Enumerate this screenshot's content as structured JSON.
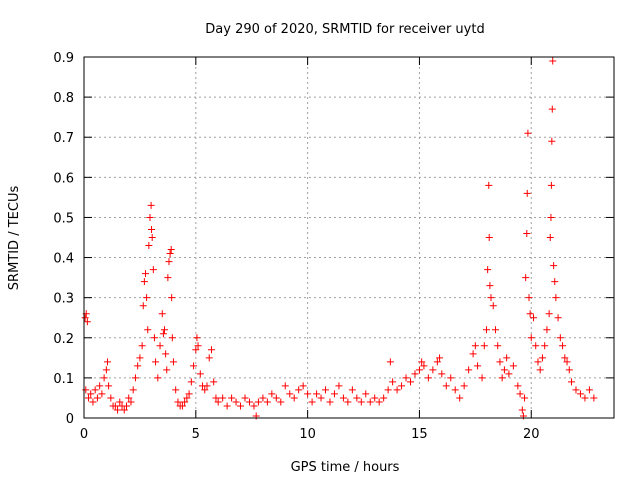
{
  "chart_data": {
    "type": "scatter",
    "title": "Day 290 of 2020, SRMTID for receiver uytd",
    "xlabel": "GPS time / hours",
    "ylabel": "SRMTID / TECUs",
    "xlim": [
      0,
      23.7
    ],
    "ylim": [
      0,
      0.9
    ],
    "xticks": [
      0,
      5,
      10,
      15,
      20
    ],
    "xtick_labels": [
      "0",
      "5",
      "10",
      "15",
      "20"
    ],
    "yticks": [
      0,
      0.1,
      0.2,
      0.3,
      0.4,
      0.5,
      0.6,
      0.7,
      0.8,
      0.9
    ],
    "ytick_labels": [
      "0",
      "0.1",
      "0.2",
      "0.3",
      "0.4",
      "0.5",
      "0.6",
      "0.7",
      "0.8",
      "0.9"
    ],
    "grid": true,
    "marker": "+",
    "color": "#ff0000",
    "series": [
      {
        "name": "SRMTID",
        "points": [
          [
            0.05,
            0.25
          ],
          [
            0.1,
            0.26
          ],
          [
            0.15,
            0.24
          ],
          [
            0.08,
            0.07
          ],
          [
            0.2,
            0.05
          ],
          [
            0.3,
            0.06
          ],
          [
            0.4,
            0.04
          ],
          [
            0.5,
            0.07
          ],
          [
            0.6,
            0.05
          ],
          [
            0.7,
            0.08
          ],
          [
            0.8,
            0.06
          ],
          [
            0.9,
            0.1
          ],
          [
            1.0,
            0.12
          ],
          [
            1.05,
            0.14
          ],
          [
            1.1,
            0.08
          ],
          [
            1.2,
            0.05
          ],
          [
            1.3,
            0.03
          ],
          [
            1.4,
            0.03
          ],
          [
            1.5,
            0.02
          ],
          [
            1.6,
            0.04
          ],
          [
            1.7,
            0.03
          ],
          [
            1.8,
            0.02
          ],
          [
            1.9,
            0.03
          ],
          [
            2.0,
            0.05
          ],
          [
            2.1,
            0.04
          ],
          [
            2.2,
            0.07
          ],
          [
            2.3,
            0.1
          ],
          [
            2.4,
            0.13
          ],
          [
            2.5,
            0.15
          ],
          [
            2.6,
            0.18
          ],
          [
            2.65,
            0.28
          ],
          [
            2.7,
            0.34
          ],
          [
            2.75,
            0.36
          ],
          [
            2.8,
            0.3
          ],
          [
            2.85,
            0.22
          ],
          [
            2.9,
            0.43
          ],
          [
            2.95,
            0.5
          ],
          [
            3.0,
            0.53
          ],
          [
            3.02,
            0.47
          ],
          [
            3.05,
            0.45
          ],
          [
            3.1,
            0.37
          ],
          [
            3.15,
            0.2
          ],
          [
            3.2,
            0.14
          ],
          [
            3.3,
            0.1
          ],
          [
            3.4,
            0.18
          ],
          [
            3.5,
            0.26
          ],
          [
            3.55,
            0.21
          ],
          [
            3.6,
            0.22
          ],
          [
            3.65,
            0.16
          ],
          [
            3.7,
            0.12
          ],
          [
            3.75,
            0.35
          ],
          [
            3.8,
            0.39
          ],
          [
            3.85,
            0.41
          ],
          [
            3.9,
            0.42
          ],
          [
            3.92,
            0.3
          ],
          [
            3.95,
            0.2
          ],
          [
            4.0,
            0.14
          ],
          [
            4.1,
            0.07
          ],
          [
            4.2,
            0.04
          ],
          [
            4.3,
            0.03
          ],
          [
            4.4,
            0.03
          ],
          [
            4.5,
            0.04
          ],
          [
            4.6,
            0.05
          ],
          [
            4.7,
            0.06
          ],
          [
            4.8,
            0.09
          ],
          [
            4.9,
            0.13
          ],
          [
            5.0,
            0.17
          ],
          [
            5.05,
            0.2
          ],
          [
            5.1,
            0.18
          ],
          [
            5.2,
            0.11
          ],
          [
            5.3,
            0.08
          ],
          [
            5.4,
            0.07
          ],
          [
            5.5,
            0.08
          ],
          [
            5.6,
            0.15
          ],
          [
            5.7,
            0.17
          ],
          [
            5.8,
            0.09
          ],
          [
            5.9,
            0.05
          ],
          [
            6.0,
            0.04
          ],
          [
            6.2,
            0.05
          ],
          [
            6.4,
            0.03
          ],
          [
            6.6,
            0.05
          ],
          [
            6.8,
            0.04
          ],
          [
            7.0,
            0.03
          ],
          [
            7.2,
            0.05
          ],
          [
            7.4,
            0.04
          ],
          [
            7.6,
            0.03
          ],
          [
            7.7,
            0.005
          ],
          [
            7.8,
            0.04
          ],
          [
            8.0,
            0.05
          ],
          [
            8.2,
            0.04
          ],
          [
            8.4,
            0.06
          ],
          [
            8.6,
            0.05
          ],
          [
            8.8,
            0.04
          ],
          [
            9.0,
            0.08
          ],
          [
            9.2,
            0.06
          ],
          [
            9.4,
            0.05
          ],
          [
            9.6,
            0.07
          ],
          [
            9.8,
            0.08
          ],
          [
            10.0,
            0.06
          ],
          [
            10.2,
            0.04
          ],
          [
            10.4,
            0.06
          ],
          [
            10.6,
            0.05
          ],
          [
            10.8,
            0.07
          ],
          [
            11.0,
            0.04
          ],
          [
            11.2,
            0.06
          ],
          [
            11.4,
            0.08
          ],
          [
            11.6,
            0.05
          ],
          [
            11.8,
            0.04
          ],
          [
            12.0,
            0.07
          ],
          [
            12.2,
            0.05
          ],
          [
            12.4,
            0.04
          ],
          [
            12.6,
            0.06
          ],
          [
            12.8,
            0.04
          ],
          [
            13.0,
            0.05
          ],
          [
            13.2,
            0.04
          ],
          [
            13.4,
            0.05
          ],
          [
            13.6,
            0.07
          ],
          [
            13.7,
            0.14
          ],
          [
            13.8,
            0.09
          ],
          [
            14.0,
            0.07
          ],
          [
            14.2,
            0.08
          ],
          [
            14.4,
            0.1
          ],
          [
            14.6,
            0.09
          ],
          [
            14.8,
            0.11
          ],
          [
            15.0,
            0.12
          ],
          [
            15.1,
            0.14
          ],
          [
            15.2,
            0.13
          ],
          [
            15.4,
            0.1
          ],
          [
            15.6,
            0.12
          ],
          [
            15.8,
            0.14
          ],
          [
            15.9,
            0.15
          ],
          [
            16.0,
            0.11
          ],
          [
            16.2,
            0.08
          ],
          [
            16.4,
            0.1
          ],
          [
            16.6,
            0.07
          ],
          [
            16.8,
            0.05
          ],
          [
            17.0,
            0.08
          ],
          [
            17.2,
            0.12
          ],
          [
            17.4,
            0.16
          ],
          [
            17.5,
            0.18
          ],
          [
            17.6,
            0.13
          ],
          [
            17.8,
            0.1
          ],
          [
            17.9,
            0.18
          ],
          [
            18.0,
            0.22
          ],
          [
            18.05,
            0.37
          ],
          [
            18.1,
            0.58
          ],
          [
            18.12,
            0.45
          ],
          [
            18.15,
            0.33
          ],
          [
            18.2,
            0.3
          ],
          [
            18.3,
            0.28
          ],
          [
            18.4,
            0.22
          ],
          [
            18.5,
            0.18
          ],
          [
            18.6,
            0.14
          ],
          [
            18.7,
            0.1
          ],
          [
            18.8,
            0.12
          ],
          [
            18.9,
            0.15
          ],
          [
            19.0,
            0.11
          ],
          [
            19.2,
            0.13
          ],
          [
            19.4,
            0.08
          ],
          [
            19.5,
            0.06
          ],
          [
            19.6,
            0.02
          ],
          [
            19.65,
            0.005
          ],
          [
            19.7,
            0.05
          ],
          [
            19.75,
            0.35
          ],
          [
            19.8,
            0.46
          ],
          [
            19.82,
            0.56
          ],
          [
            19.85,
            0.71
          ],
          [
            19.9,
            0.3
          ],
          [
            19.95,
            0.26
          ],
          [
            20.0,
            0.2
          ],
          [
            20.1,
            0.25
          ],
          [
            20.2,
            0.18
          ],
          [
            20.3,
            0.14
          ],
          [
            20.4,
            0.12
          ],
          [
            20.5,
            0.15
          ],
          [
            20.6,
            0.18
          ],
          [
            20.7,
            0.22
          ],
          [
            20.8,
            0.26
          ],
          [
            20.85,
            0.45
          ],
          [
            20.88,
            0.5
          ],
          [
            20.9,
            0.58
          ],
          [
            20.92,
            0.69
          ],
          [
            20.94,
            0.77
          ],
          [
            20.96,
            0.89
          ],
          [
            21.0,
            0.38
          ],
          [
            21.05,
            0.34
          ],
          [
            21.1,
            0.3
          ],
          [
            21.2,
            0.25
          ],
          [
            21.3,
            0.2
          ],
          [
            21.4,
            0.18
          ],
          [
            21.5,
            0.15
          ],
          [
            21.6,
            0.14
          ],
          [
            21.7,
            0.12
          ],
          [
            21.8,
            0.09
          ],
          [
            22.0,
            0.07
          ],
          [
            22.2,
            0.06
          ],
          [
            22.4,
            0.05
          ],
          [
            22.6,
            0.07
          ],
          [
            22.8,
            0.05
          ]
        ]
      }
    ]
  }
}
